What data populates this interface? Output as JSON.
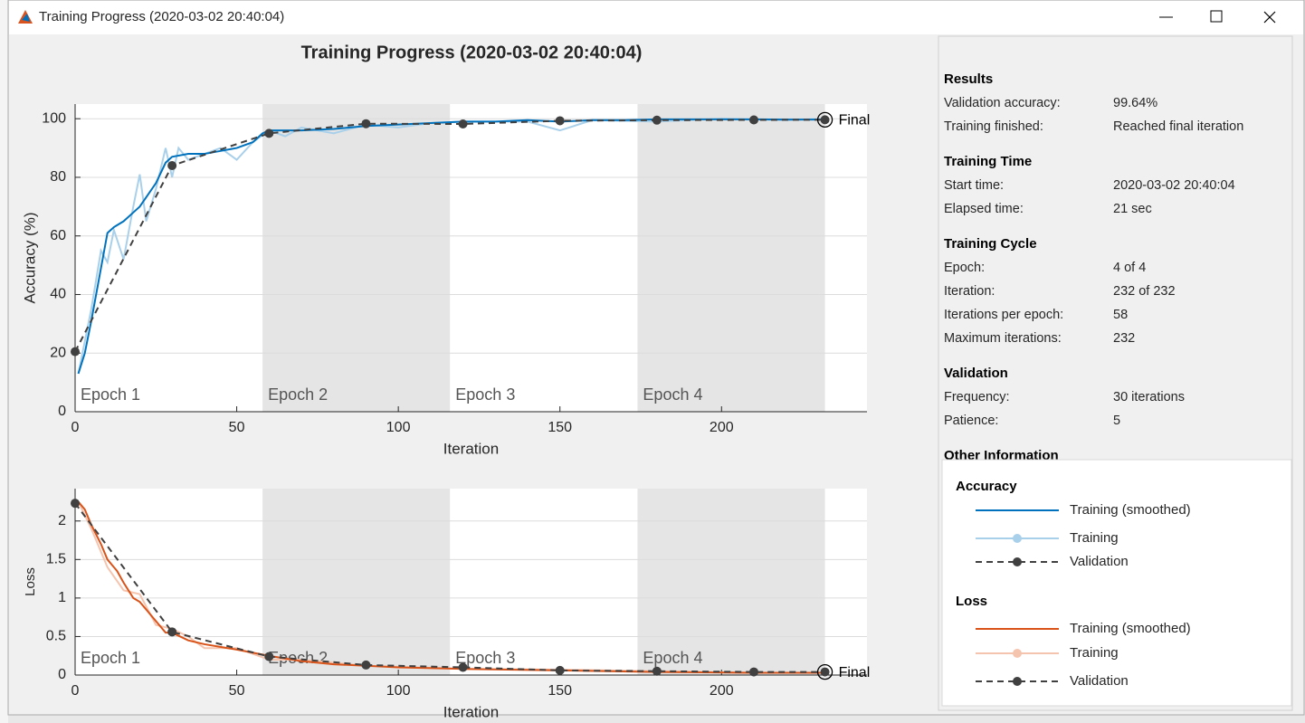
{
  "window_title": "Training Progress (2020-03-02 20:40:04)",
  "epochs": [
    {
      "label": "Epoch 1",
      "start": 0,
      "end": 58
    },
    {
      "label": "Epoch 2",
      "start": 58,
      "end": 116
    },
    {
      "label": "Epoch 3",
      "start": 116,
      "end": 174
    },
    {
      "label": "Epoch 4",
      "start": 174,
      "end": 232
    }
  ],
  "chart_data": [
    {
      "type": "line",
      "title": "Training Progress (2020-03-02 20:40:04)",
      "xlabel": "Iteration",
      "ylabel": "Accuracy (%)",
      "legend_title": "Accuracy",
      "annotation": "Final",
      "xlim": [
        0,
        245
      ],
      "xticks": [
        0,
        50,
        100,
        150,
        200
      ],
      "ylim": [
        0,
        105
      ],
      "yticks": [
        0,
        20,
        40,
        60,
        80,
        100
      ],
      "grid": "y",
      "series": [
        {
          "name": "Training (smoothed)",
          "color": "#0072bd",
          "line_style": "solid",
          "x": [
            1,
            3,
            5,
            7,
            10,
            12,
            15,
            18,
            20,
            25,
            28,
            30,
            35,
            40,
            45,
            50,
            55,
            58,
            60,
            70,
            80,
            90,
            100,
            110,
            120,
            130,
            140,
            150,
            160,
            170,
            180,
            190,
            200,
            210,
            220,
            232
          ],
          "values": [
            13,
            20,
            31,
            43,
            61,
            63,
            65,
            68,
            70,
            78,
            85,
            87,
            88,
            88,
            89,
            90,
            92,
            95,
            96,
            96,
            96.5,
            97.5,
            98,
            98.5,
            99,
            99,
            99.5,
            99,
            99.5,
            99.5,
            99.8,
            99.8,
            99.8,
            99.8,
            99.7,
            99.7
          ]
        },
        {
          "name": "Training",
          "color": "#a9d0ea",
          "line_style": "solid",
          "x": [
            1,
            3,
            5,
            8,
            10,
            12,
            15,
            18,
            20,
            22,
            25,
            28,
            30,
            32,
            35,
            40,
            45,
            50,
            55,
            60,
            65,
            70,
            80,
            90,
            100,
            110,
            120,
            140,
            150,
            160,
            180,
            200,
            220,
            232
          ],
          "values": [
            13,
            24,
            35,
            55,
            51,
            62,
            52,
            70,
            81,
            65,
            76,
            90,
            80,
            90,
            86,
            88,
            90,
            86,
            92,
            96,
            94,
            97,
            95,
            98,
            97,
            98.5,
            99,
            99,
            96,
            99.5,
            99,
            100,
            99.5,
            100
          ]
        },
        {
          "name": "Validation",
          "color": "#404040",
          "line_style": "dashed",
          "marker": "circle",
          "x": [
            0,
            30,
            60,
            90,
            120,
            150,
            180,
            210,
            232
          ],
          "values": [
            20.5,
            84,
            95,
            98.3,
            98.2,
            99.3,
            99.5,
            99.6,
            99.64
          ]
        }
      ]
    },
    {
      "type": "line",
      "xlabel": "Iteration",
      "ylabel": "Loss",
      "legend_title": "Loss",
      "annotation": "Final",
      "xlim": [
        0,
        245
      ],
      "xticks": [
        0,
        50,
        100,
        150,
        200
      ],
      "ylim": [
        0,
        2.42
      ],
      "yticks": [
        0,
        0.5,
        1,
        1.5,
        2
      ],
      "grid": "y",
      "series": [
        {
          "name": "Training (smoothed)",
          "color": "#d95319",
          "line_style": "solid",
          "x": [
            1,
            3,
            5,
            8,
            10,
            13,
            15,
            18,
            20,
            25,
            28,
            30,
            35,
            40,
            50,
            60,
            70,
            80,
            90,
            100,
            120,
            150,
            180,
            210,
            232
          ],
          "values": [
            2.25,
            2.15,
            1.95,
            1.7,
            1.5,
            1.35,
            1.2,
            1.0,
            0.95,
            0.7,
            0.55,
            0.55,
            0.45,
            0.4,
            0.33,
            0.25,
            0.18,
            0.14,
            0.12,
            0.1,
            0.08,
            0.06,
            0.04,
            0.03,
            0.03
          ]
        },
        {
          "name": "Training",
          "color": "#f5c4ae",
          "line_style": "solid",
          "x": [
            1,
            5,
            10,
            15,
            20,
            25,
            30,
            35,
            40,
            50,
            60,
            70,
            90,
            120,
            150,
            180,
            210,
            232
          ],
          "values": [
            2.25,
            1.9,
            1.4,
            1.1,
            1.05,
            0.65,
            0.6,
            0.5,
            0.35,
            0.35,
            0.2,
            0.2,
            0.12,
            0.08,
            0.07,
            0.05,
            0.03,
            0.03
          ]
        },
        {
          "name": "Validation",
          "color": "#404040",
          "line_style": "dashed",
          "marker": "circle",
          "x": [
            0,
            30,
            60,
            90,
            120,
            150,
            180,
            210,
            232
          ],
          "values": [
            2.23,
            0.56,
            0.24,
            0.13,
            0.1,
            0.06,
            0.05,
            0.04,
            0.04
          ]
        }
      ]
    }
  ],
  "results_panel": [
    {
      "title": "Results",
      "rows": [
        [
          "Validation accuracy:",
          "99.64%"
        ],
        [
          "Training finished:",
          "Reached final iteration"
        ]
      ]
    },
    {
      "title": "Training Time",
      "rows": [
        [
          "Start time:",
          "2020-03-02 20:40:04"
        ],
        [
          "Elapsed time:",
          "21 sec"
        ]
      ]
    },
    {
      "title": "Training Cycle",
      "rows": [
        [
          "Epoch:",
          "4 of 4"
        ],
        [
          "Iteration:",
          "232 of 232"
        ],
        [
          "Iterations per epoch:",
          "58"
        ],
        [
          "Maximum iterations:",
          "232"
        ]
      ]
    },
    {
      "title": "Validation",
      "rows": [
        [
          "Frequency:",
          "30 iterations"
        ],
        [
          "Patience:",
          "5"
        ]
      ]
    },
    {
      "title": "Other Information",
      "rows": []
    }
  ]
}
